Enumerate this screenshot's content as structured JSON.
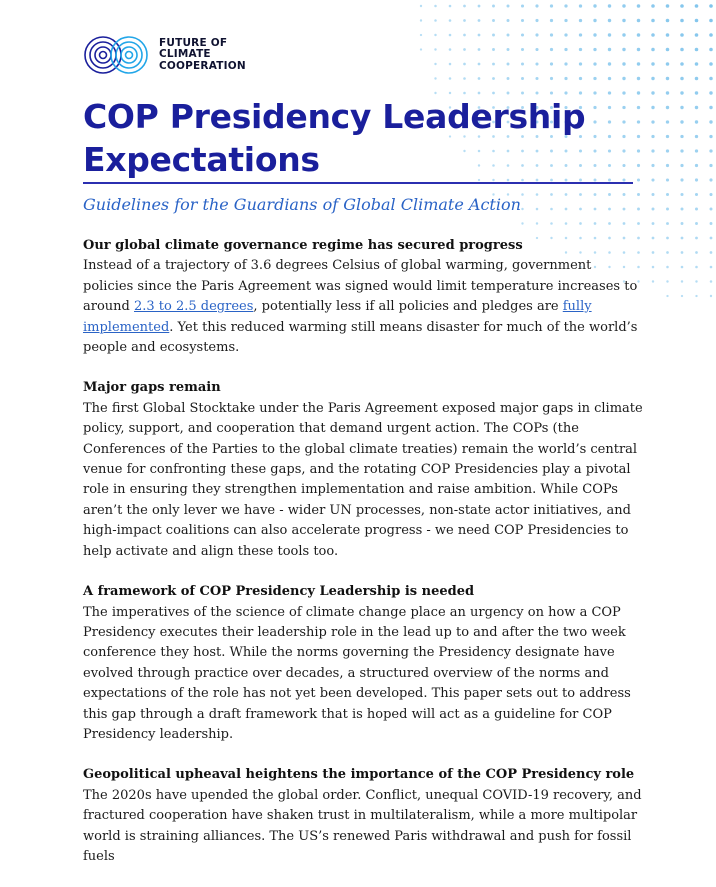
{
  "brand": {
    "line1": "FUTURE OF",
    "line2": "CLIMATE",
    "line3": "COOPERATION"
  },
  "title": {
    "line1": "COP Presidency Leadership",
    "line2": "Expectations"
  },
  "subtitle": "Guidelines for the Guardians of Global Climate Action",
  "sections": [
    {
      "heading": "Our global climate governance regime has secured progress",
      "text_1": "Instead of a trajectory of 3.6 degrees Celsius of global warming, government policies since the Paris Agreement was signed would limit temperature increases to around ",
      "link_1": "2.3 to 2.5 degrees",
      "text_2": ", potentially less if all policies and pledges are ",
      "link_2": "fully implemented",
      "text_3": ". Yet this reduced warming still means disaster for much of the world’s people and ecosystems."
    },
    {
      "heading": "Major gaps remain",
      "text": "The first Global Stocktake under the Paris Agreement exposed major gaps in climate policy, support, and cooperation that demand urgent action. The COPs (the Conferences of the Parties to the global climate treaties) remain the world’s central venue for confronting these gaps, and the rotating COP Presidencies play a pivotal role in ensuring they strengthen implementation and raise ambition. While COPs aren’t the only lever we have - wider UN processes, non-state actor initiatives, and high-impact coalitions can also accelerate progress - we need COP Presidencies to help activate and align these tools too."
    },
    {
      "heading": "A framework of COP Presidency Leadership is needed",
      "text": "The imperatives of the science of climate change place an urgency on how a COP Presidency executes their leadership role in the lead up to and after the two week conference they host. While the norms governing the Presidency designate have evolved through practice over decades, a structured overview of the norms and expectations of the role has not yet been developed. This paper sets out to address this gap through a draft framework that is hoped will act as a guideline for COP Presidency leadership."
    },
    {
      "heading": "Geopolitical upheaval heightens the importance of the COP Presidency role",
      "text": "The 2020s have upended the global order. Conflict, unequal COVID-19 recovery, and fractured cooperation have shaken trust in multilateralism, while a more multipolar world is straining alliances. The US’s renewed Paris withdrawal and push for fossil fuels"
    }
  ],
  "colors": {
    "title": "#1a1f9c",
    "subtitle": "#2a63c6",
    "link": "#2a63c6",
    "dots": "#7fc4ec"
  }
}
